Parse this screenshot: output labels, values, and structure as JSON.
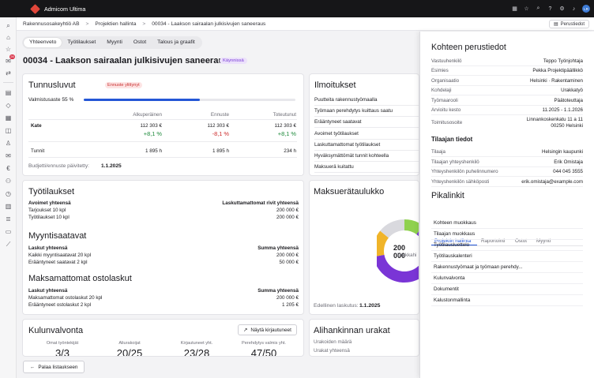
{
  "app": {
    "name": "Admicom Ultima"
  },
  "topbar": {
    "icons": [
      "grid-icon",
      "star-icon",
      "search-icon",
      "help-icon",
      "settings-icon",
      "bell-icon"
    ],
    "avatar_initials": "LR"
  },
  "sidebar": {
    "badge": "26"
  },
  "breadcrumb": {
    "items": [
      "Rakennusosakeyhtiö AB",
      "Projektien hallinta",
      "00034 - Laakson sairaalan julkisivujen saneeraus"
    ],
    "sep": ">"
  },
  "header_button": {
    "label": "Perustiedot"
  },
  "tabs": [
    "Yhteenveto",
    "Työtilaukset",
    "Myynti",
    "Ostot",
    "Talous ja graafit"
  ],
  "page": {
    "title": "00034 - Laakson sairaalan julkisivujen saneeraus",
    "status": "Käynnissä"
  },
  "tunnusluvut": {
    "title": "Tunnusluvut",
    "warning": "Ennuste ylittynyt",
    "progress_label": "Valmistusaste 55 %",
    "progress": 0.55,
    "columns": [
      "Alkuperäinen",
      "Ennuste",
      "Toteutunut"
    ],
    "kate_label": "Kate",
    "kate_values": [
      "112 303 €",
      "112 303 €",
      "112 303 €"
    ],
    "kate_pct": [
      "+8,1 %",
      "-8,1 %",
      "+8,1 %"
    ],
    "hours_label": "Tunnit",
    "hours_values": [
      "1 895 h",
      "1 895 h",
      "234 h"
    ],
    "updated_label": "Budjetti/ennuste päivitetty:",
    "updated_value": "1.1.2025"
  },
  "ilmoitukset": {
    "title": "Ilmoitukset",
    "items": [
      "Puutteita rakennustyömaalla",
      "Työmaan perehdytys kuittaus saatu",
      "Erääntyneet saatavat",
      "Avoimet työtilaukset",
      "Laskuttamattomat työtilaukset",
      "Hyväksymättömät tunnit kohteella",
      "Maksuerä kuitattu"
    ]
  },
  "tyotilaukset": {
    "title": "Työtilaukset",
    "left_head": "Avoimet yhteensä",
    "left_items": [
      "Tarjoukset 10 kpl",
      "Työtilaukset 10 kpl"
    ],
    "right_head": "Laskuttamattomat rivit yhteensä",
    "right_items": [
      "200 000 €",
      "200 000 €"
    ]
  },
  "myyntisaatavat": {
    "title": "Myyntisaatavat",
    "left_head": "Laskut yhteensä",
    "left_items": [
      "Kaikki myyntisaatavat 20 kpl",
      "Erääntyneet saatavat 2 kpl"
    ],
    "right_head": "Summa yhteensä",
    "right_items": [
      "200 000 €",
      "50 000 €"
    ]
  },
  "ostolaskut": {
    "title": "Maksamattomat ostolaskut",
    "left_head": "Laskut yhteensä",
    "left_items": [
      "Maksamattomat ostolaskut 20 kpl",
      "Erääntyneet ostolaskut 2 kpl"
    ],
    "right_head": "Summa yhteensä",
    "right_items": [
      "200 000 €",
      "1 205 €"
    ]
  },
  "maksuera": {
    "title": "Maksuerätaulukko",
    "center_value": "200 000",
    "center_label": "Urakkahi",
    "footer_label": "Edellinen laskutus:",
    "footer_value": "1.1.2025",
    "segments": [
      {
        "share": 0.62,
        "color": "#7a35d6"
      },
      {
        "share": 0.14,
        "color": "#f0b429"
      },
      {
        "share": 0.14,
        "color": "#d9d9de"
      },
      {
        "share": 0.1,
        "color": "#8fd14f"
      }
    ]
  },
  "kulunvalvonta": {
    "title": "Kulunvalvonta",
    "button": "Näytä kirjautuneet",
    "stats": [
      {
        "label": "Omat työntekijät",
        "value": "3/3"
      },
      {
        "label": "Aliurakoijat",
        "value": "20/25"
      },
      {
        "label": "Kirjautuneet yht.",
        "value": "23/28"
      },
      {
        "label": "Perehdytys valmis yht.",
        "value": "47/50"
      }
    ]
  },
  "aliurakat": {
    "title": "Alihankinnan urakat",
    "items": [
      "Urakoiden määrä",
      "Urakat yhteensä"
    ]
  },
  "back_button": {
    "label": "Palaa listaukseen"
  },
  "perustiedot": {
    "title": "Kohteen perustiedot",
    "rows": [
      {
        "k": "Vastuuhenkilö",
        "v": "Teppo Työnjohtaja"
      },
      {
        "k": "Esimies",
        "v": "Pekka Projektipäällikkö"
      },
      {
        "k": "Organisaatio",
        "v": "Helsinki · Rakentaminen"
      },
      {
        "k": "Kohdelaji",
        "v": "Urakkatyö"
      },
      {
        "k": "Työmaarooli",
        "v": "Päätoteuttaja"
      },
      {
        "k": "Arvioitu kesto",
        "v": "11.2025 - 1.1.2026"
      }
    ],
    "address_label": "Toimitusosoite",
    "address_lines": [
      "Linnankoskenkatu 11 a 11",
      "00250 Helsinki"
    ],
    "tilaaja_title": "Tilaajan tiedot",
    "tilaaja_rows": [
      {
        "k": "Tilaaja",
        "v": "Helsingin kaupunki"
      },
      {
        "k": "Tilaajan yhteyshenkilö",
        "v": "Erik Omistaja"
      },
      {
        "k": "Yhteyshenkilön puhelinnumero",
        "v": "044 045 3555"
      },
      {
        "k": "Yhteyshenkilön sähköposti",
        "v": "erik.omistaja@example.com"
      }
    ],
    "pikalinkit_title": "Pikalinkit",
    "pikalinkit_tabs": [
      "Projektin hallinta",
      "Raportointi",
      "Ostot",
      "Myynti"
    ],
    "links": [
      "Kohteen muokkaus",
      "Tilaajan muokkaus",
      "Työtilausluettelo",
      "Työtilauskalenteri",
      "Rakennustyömaat ja työmaan perehdy...",
      "Kulunvalvonta",
      "Dokumentit",
      "Kalustonmallinta"
    ]
  }
}
